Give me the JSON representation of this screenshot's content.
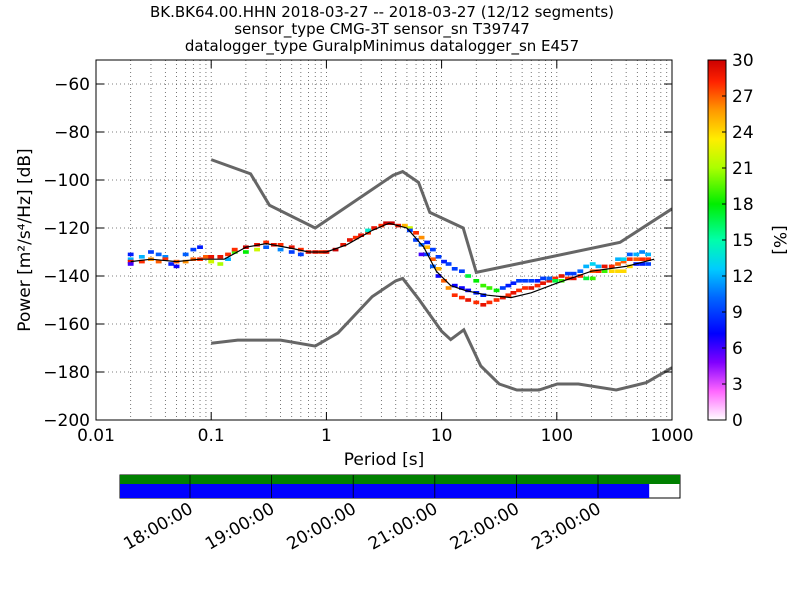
{
  "chart_data": {
    "type": "heatmap",
    "title_lines": [
      "BK.BK64.00.HHN   2018-03-27 -- 2018-03-27  (12/12 segments)",
      "sensor_type CMG-3T sensor_sn T39747",
      "datalogger_type GuralpMinimus datalogger_sn E457"
    ],
    "xlabel": "Period [s]",
    "ylabel": "Power [m²/s⁴/Hz] [dB]",
    "x_scale": "log",
    "xlim": [
      0.01,
      1000
    ],
    "ylim": [
      -200,
      -50
    ],
    "x_ticks": [
      {
        "value": 0.01,
        "label": "0.01"
      },
      {
        "value": 0.1,
        "label": "0.1"
      },
      {
        "value": 1,
        "label": "1"
      },
      {
        "value": 10,
        "label": "10"
      },
      {
        "value": 100,
        "label": "100"
      },
      {
        "value": 1000,
        "label": "1000"
      }
    ],
    "y_ticks": [
      -60,
      -80,
      -100,
      -120,
      -140,
      -160,
      -180,
      -200
    ],
    "grid": true,
    "colorbar": {
      "label": "[%]",
      "min": 0,
      "max": 30,
      "ticks": [
        0,
        3,
        6,
        9,
        12,
        15,
        18,
        21,
        24,
        27,
        30
      ]
    },
    "noise_models": [
      {
        "name": "high",
        "points": [
          [
            0.1,
            -91.5
          ],
          [
            0.22,
            -97.4
          ],
          [
            0.32,
            -110.5
          ],
          [
            0.8,
            -120
          ],
          [
            3.8,
            -98
          ],
          [
            4.6,
            -96.5
          ],
          [
            6.3,
            -101
          ],
          [
            7.9,
            -113.5
          ],
          [
            15.4,
            -120
          ],
          [
            20,
            -138.5
          ],
          [
            354,
            -126
          ],
          [
            1000,
            -112
          ]
        ]
      },
      {
        "name": "low",
        "points": [
          [
            0.1,
            -168
          ],
          [
            0.17,
            -166.7
          ],
          [
            0.4,
            -166.7
          ],
          [
            0.8,
            -169.2
          ],
          [
            1.26,
            -163.7
          ],
          [
            2.5,
            -148.6
          ],
          [
            4,
            -142
          ],
          [
            4.6,
            -141
          ],
          [
            6.3,
            -149.5
          ],
          [
            10,
            -163
          ],
          [
            12,
            -166.5
          ],
          [
            15.6,
            -162.4
          ],
          [
            21.9,
            -177.5
          ],
          [
            31.6,
            -185
          ],
          [
            45,
            -187.5
          ],
          [
            70,
            -187.5
          ],
          [
            101,
            -185
          ],
          [
            154,
            -185
          ],
          [
            328,
            -187.5
          ],
          [
            600,
            -184.4
          ],
          [
            1000,
            -178.2
          ]
        ]
      }
    ],
    "mean_curve": [
      [
        0.02,
        -134
      ],
      [
        0.03,
        -133
      ],
      [
        0.05,
        -134
      ],
      [
        0.08,
        -133
      ],
      [
        0.13,
        -133
      ],
      [
        0.2,
        -128
      ],
      [
        0.3,
        -126.5
      ],
      [
        0.5,
        -128.5
      ],
      [
        0.7,
        -130
      ],
      [
        1,
        -130
      ],
      [
        1.5,
        -127
      ],
      [
        2.5,
        -121
      ],
      [
        3.5,
        -118
      ],
      [
        5,
        -120
      ],
      [
        7,
        -128
      ],
      [
        9,
        -138
      ],
      [
        12,
        -144
      ],
      [
        16,
        -146
      ],
      [
        25,
        -148
      ],
      [
        40,
        -149
      ],
      [
        60,
        -147
      ],
      [
        100,
        -143
      ],
      [
        200,
        -138
      ],
      [
        400,
        -136
      ],
      [
        700,
        -133
      ]
    ],
    "psd_cells": [
      {
        "period": 0.02,
        "power": -131,
        "pct": 8
      },
      {
        "period": 0.02,
        "power": -133,
        "pct": 12
      },
      {
        "period": 0.02,
        "power": -134,
        "pct": 29
      },
      {
        "period": 0.02,
        "power": -135,
        "pct": 6
      },
      {
        "period": 0.025,
        "power": -132,
        "pct": 12
      },
      {
        "period": 0.025,
        "power": -134,
        "pct": 28
      },
      {
        "period": 0.03,
        "power": -130,
        "pct": 9
      },
      {
        "period": 0.03,
        "power": -133,
        "pct": 26
      },
      {
        "period": 0.035,
        "power": -131,
        "pct": 10
      },
      {
        "period": 0.035,
        "power": -134,
        "pct": 27
      },
      {
        "period": 0.04,
        "power": -132,
        "pct": 11
      },
      {
        "period": 0.04,
        "power": -133,
        "pct": 28
      },
      {
        "period": 0.045,
        "power": -135,
        "pct": 8
      },
      {
        "period": 0.05,
        "power": -134,
        "pct": 27
      },
      {
        "period": 0.05,
        "power": -136,
        "pct": 7
      },
      {
        "period": 0.06,
        "power": -131,
        "pct": 10
      },
      {
        "period": 0.06,
        "power": -134,
        "pct": 26
      },
      {
        "period": 0.07,
        "power": -129,
        "pct": 9
      },
      {
        "period": 0.07,
        "power": -133,
        "pct": 27
      },
      {
        "period": 0.08,
        "power": -128,
        "pct": 8
      },
      {
        "period": 0.08,
        "power": -133,
        "pct": 28
      },
      {
        "period": 0.09,
        "power": -132,
        "pct": 27
      },
      {
        "period": 0.1,
        "power": -134,
        "pct": 22
      },
      {
        "period": 0.1,
        "power": -132,
        "pct": 29
      },
      {
        "period": 0.12,
        "power": -132,
        "pct": 29
      },
      {
        "period": 0.12,
        "power": -135,
        "pct": 21
      },
      {
        "period": 0.14,
        "power": -131,
        "pct": 28
      },
      {
        "period": 0.14,
        "power": -133,
        "pct": 12
      },
      {
        "period": 0.16,
        "power": -130,
        "pct": 19
      },
      {
        "period": 0.16,
        "power": -129,
        "pct": 28
      },
      {
        "period": 0.2,
        "power": -128,
        "pct": 30
      },
      {
        "period": 0.2,
        "power": -130,
        "pct": 18
      },
      {
        "period": 0.25,
        "power": -127,
        "pct": 29
      },
      {
        "period": 0.25,
        "power": -129,
        "pct": 22
      },
      {
        "period": 0.3,
        "power": -126,
        "pct": 28
      },
      {
        "period": 0.3,
        "power": -128,
        "pct": 10
      },
      {
        "period": 0.35,
        "power": -127,
        "pct": 29
      },
      {
        "period": 0.4,
        "power": -127,
        "pct": 28
      },
      {
        "period": 0.4,
        "power": -129,
        "pct": 11
      },
      {
        "period": 0.5,
        "power": -128,
        "pct": 29
      },
      {
        "period": 0.5,
        "power": -130,
        "pct": 9
      },
      {
        "period": 0.6,
        "power": -129,
        "pct": 28
      },
      {
        "period": 0.6,
        "power": -131,
        "pct": 9
      },
      {
        "period": 0.7,
        "power": -130,
        "pct": 29
      },
      {
        "period": 0.8,
        "power": -130,
        "pct": 29
      },
      {
        "period": 0.9,
        "power": -130,
        "pct": 28
      },
      {
        "period": 1.0,
        "power": -130,
        "pct": 29
      },
      {
        "period": 1.2,
        "power": -129,
        "pct": 30
      },
      {
        "period": 1.4,
        "power": -127,
        "pct": 29
      },
      {
        "period": 1.6,
        "power": -125,
        "pct": 29
      },
      {
        "period": 1.8,
        "power": -124,
        "pct": 28
      },
      {
        "period": 2.0,
        "power": -123,
        "pct": 29
      },
      {
        "period": 2.3,
        "power": -122,
        "pct": 28
      },
      {
        "period": 2.3,
        "power": -121,
        "pct": 14
      },
      {
        "period": 2.6,
        "power": -120,
        "pct": 29
      },
      {
        "period": 3.0,
        "power": -119,
        "pct": 28
      },
      {
        "period": 3.3,
        "power": -118,
        "pct": 30
      },
      {
        "period": 3.7,
        "power": -118,
        "pct": 30
      },
      {
        "period": 4.2,
        "power": -119,
        "pct": 29
      },
      {
        "period": 4.8,
        "power": -119,
        "pct": 25
      },
      {
        "period": 5.3,
        "power": -120,
        "pct": 22
      },
      {
        "period": 5.3,
        "power": -121,
        "pct": 9
      },
      {
        "period": 6.0,
        "power": -122,
        "pct": 28
      },
      {
        "period": 6.0,
        "power": -125,
        "pct": 9
      },
      {
        "period": 6.7,
        "power": -124,
        "pct": 26
      },
      {
        "period": 6.7,
        "power": -127,
        "pct": 10
      },
      {
        "period": 6.7,
        "power": -131,
        "pct": 6
      },
      {
        "period": 7.5,
        "power": -128,
        "pct": 25
      },
      {
        "period": 7.5,
        "power": -131,
        "pct": 9
      },
      {
        "period": 7.5,
        "power": -126,
        "pct": 8
      },
      {
        "period": 8.4,
        "power": -133,
        "pct": 27
      },
      {
        "period": 8.4,
        "power": -129,
        "pct": 9
      },
      {
        "period": 8.4,
        "power": -136,
        "pct": 10
      },
      {
        "period": 9.4,
        "power": -137,
        "pct": 25
      },
      {
        "period": 9.4,
        "power": -132,
        "pct": 9
      },
      {
        "period": 9.4,
        "power": -140,
        "pct": 7
      },
      {
        "period": 10.5,
        "power": -142,
        "pct": 27
      },
      {
        "period": 10.5,
        "power": -134,
        "pct": 8
      },
      {
        "period": 11.5,
        "power": -145,
        "pct": 26
      },
      {
        "period": 11.5,
        "power": -135,
        "pct": 9
      },
      {
        "period": 13,
        "power": -148,
        "pct": 28
      },
      {
        "period": 13,
        "power": -137,
        "pct": 9
      },
      {
        "period": 13,
        "power": -144,
        "pct": 7
      },
      {
        "period": 15,
        "power": -149,
        "pct": 28
      },
      {
        "period": 15,
        "power": -138,
        "pct": 9
      },
      {
        "period": 15,
        "power": -145,
        "pct": 7
      },
      {
        "period": 17,
        "power": -150,
        "pct": 29
      },
      {
        "period": 17,
        "power": -140,
        "pct": 17
      },
      {
        "period": 17,
        "power": -146,
        "pct": 7
      },
      {
        "period": 20,
        "power": -151,
        "pct": 28
      },
      {
        "period": 20,
        "power": -142,
        "pct": 18
      },
      {
        "period": 20,
        "power": -147,
        "pct": 8
      },
      {
        "period": 23,
        "power": -152,
        "pct": 29
      },
      {
        "period": 23,
        "power": -144,
        "pct": 19
      },
      {
        "period": 23,
        "power": -148,
        "pct": 8
      },
      {
        "period": 26,
        "power": -151,
        "pct": 28
      },
      {
        "period": 26,
        "power": -145,
        "pct": 19
      },
      {
        "period": 30,
        "power": -150,
        "pct": 28
      },
      {
        "period": 30,
        "power": -146,
        "pct": 18
      },
      {
        "period": 34,
        "power": -149,
        "pct": 29
      },
      {
        "period": 34,
        "power": -145,
        "pct": 9
      },
      {
        "period": 38,
        "power": -148,
        "pct": 28
      },
      {
        "period": 38,
        "power": -144,
        "pct": 8
      },
      {
        "period": 42,
        "power": -147,
        "pct": 29
      },
      {
        "period": 42,
        "power": -143,
        "pct": 8
      },
      {
        "period": 47,
        "power": -146,
        "pct": 28
      },
      {
        "period": 47,
        "power": -142,
        "pct": 9
      },
      {
        "period": 53,
        "power": -145,
        "pct": 28
      },
      {
        "period": 53,
        "power": -142,
        "pct": 9
      },
      {
        "period": 60,
        "power": -145,
        "pct": 29
      },
      {
        "period": 60,
        "power": -142,
        "pct": 9
      },
      {
        "period": 68,
        "power": -144,
        "pct": 28
      },
      {
        "period": 68,
        "power": -142,
        "pct": 8
      },
      {
        "period": 76,
        "power": -143,
        "pct": 29
      },
      {
        "period": 76,
        "power": -141,
        "pct": 9
      },
      {
        "period": 86,
        "power": -142,
        "pct": 29
      },
      {
        "period": 86,
        "power": -141,
        "pct": 10
      },
      {
        "period": 97,
        "power": -141,
        "pct": 28
      },
      {
        "period": 97,
        "power": -142,
        "pct": 17
      },
      {
        "period": 110,
        "power": -140,
        "pct": 29
      },
      {
        "period": 110,
        "power": -142,
        "pct": 19
      },
      {
        "period": 125,
        "power": -141,
        "pct": 28
      },
      {
        "period": 125,
        "power": -139,
        "pct": 9
      },
      {
        "period": 140,
        "power": -141,
        "pct": 29
      },
      {
        "period": 140,
        "power": -139,
        "pct": 9
      },
      {
        "period": 160,
        "power": -140,
        "pct": 28
      },
      {
        "period": 160,
        "power": -138,
        "pct": 10
      },
      {
        "period": 180,
        "power": -141,
        "pct": 17
      },
      {
        "period": 180,
        "power": -136,
        "pct": 12
      },
      {
        "period": 205,
        "power": -138,
        "pct": 27
      },
      {
        "period": 205,
        "power": -141,
        "pct": 19
      },
      {
        "period": 205,
        "power": -135,
        "pct": 13
      },
      {
        "period": 230,
        "power": -138,
        "pct": 28
      },
      {
        "period": 230,
        "power": -136,
        "pct": 12
      },
      {
        "period": 260,
        "power": -136,
        "pct": 29
      },
      {
        "period": 260,
        "power": -138,
        "pct": 19
      },
      {
        "period": 300,
        "power": -136,
        "pct": 28
      },
      {
        "period": 300,
        "power": -138,
        "pct": 24
      },
      {
        "period": 340,
        "power": -135,
        "pct": 27
      },
      {
        "period": 340,
        "power": -133,
        "pct": 12
      },
      {
        "period": 340,
        "power": -138,
        "pct": 24
      },
      {
        "period": 380,
        "power": -134,
        "pct": 27
      },
      {
        "period": 380,
        "power": -133,
        "pct": 13
      },
      {
        "period": 380,
        "power": -138,
        "pct": 24
      },
      {
        "period": 430,
        "power": -133,
        "pct": 28
      },
      {
        "period": 430,
        "power": -131,
        "pct": 10
      },
      {
        "period": 430,
        "power": -136,
        "pct": 24
      },
      {
        "period": 490,
        "power": -133,
        "pct": 27
      },
      {
        "period": 490,
        "power": -131,
        "pct": 12
      },
      {
        "period": 490,
        "power": -135,
        "pct": 8
      },
      {
        "period": 550,
        "power": -133,
        "pct": 28
      },
      {
        "period": 550,
        "power": -130,
        "pct": 11
      },
      {
        "period": 550,
        "power": -135,
        "pct": 8
      },
      {
        "period": 620,
        "power": -133,
        "pct": 28
      },
      {
        "period": 620,
        "power": -131,
        "pct": 12
      },
      {
        "period": 620,
        "power": -135,
        "pct": 9
      }
    ]
  },
  "timeline": {
    "ticks": [
      "18:00:00",
      "19:00:00",
      "20:00:00",
      "21:00:00",
      "22:00:00",
      "23:00:00"
    ],
    "coverage_color": "#008000",
    "segments_color": "#0000ff",
    "segments_fraction": 0.945
  }
}
